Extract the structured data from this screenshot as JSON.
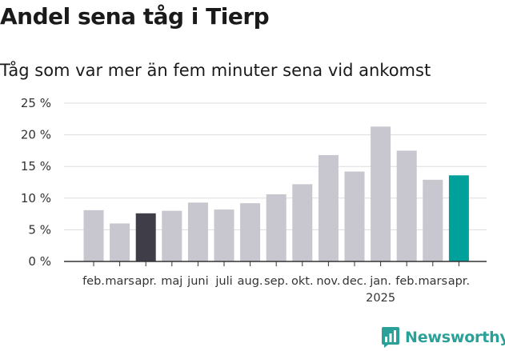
{
  "title": "Andel sena tåg i Tierp",
  "subtitle": "Tåg som var mer än fem minuter sena vid ankomst",
  "brand": {
    "name": "Newsworthy",
    "icon": "newsworthy-logo-icon",
    "color": "#2aa198"
  },
  "chart_data": {
    "type": "bar",
    "categories": [
      "feb.",
      "mars",
      "apr.",
      "maj",
      "juni",
      "juli",
      "aug.",
      "sep.",
      "okt.",
      "nov.",
      "dec.",
      "jan.",
      "feb.",
      "mars",
      "apr."
    ],
    "year_label": "2025",
    "values": [
      8.1,
      6.0,
      7.6,
      8.0,
      9.3,
      8.2,
      9.2,
      10.6,
      12.2,
      16.8,
      14.2,
      21.3,
      17.5,
      12.9,
      13.6
    ],
    "highlight": {
      "2": "#3f3d47",
      "14": "#00a19a"
    },
    "bar_color": "#c8c6cf",
    "ylim": [
      0,
      25
    ],
    "yticks": [
      0,
      5,
      10,
      15,
      20,
      25
    ],
    "ytick_labels": [
      "0 %",
      "5 %",
      "10 %",
      "15 %",
      "20 %",
      "25 %"
    ],
    "grid": true,
    "xlabel": "",
    "ylabel": ""
  }
}
